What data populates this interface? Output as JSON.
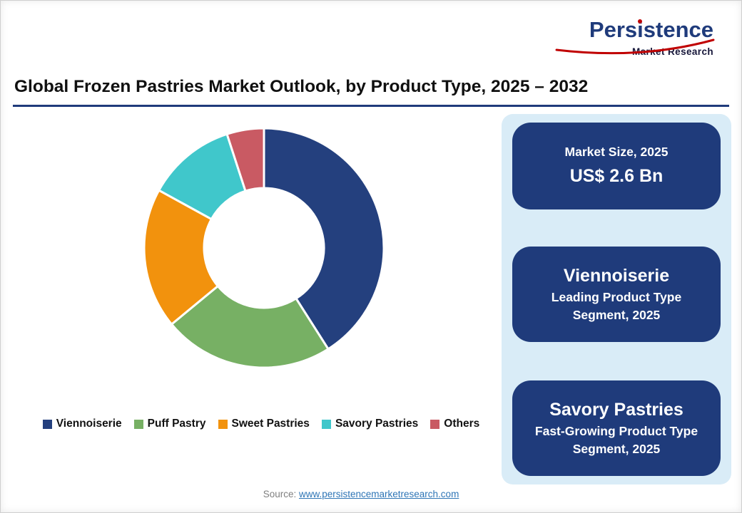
{
  "logo": {
    "brand_pre": "Pers",
    "brand_i": "i",
    "brand_post": "stence",
    "subtitle": "Market Research",
    "brand_color": "#1F3B7B",
    "accent_color": "#C00000"
  },
  "title": "Global Frozen Pastries Market Outlook, by Product Type, 2025 – 2032",
  "chart_data": {
    "type": "pie",
    "subtype": "donut",
    "title": "Global Frozen Pastries Market Outlook, by Product Type, 2025 – 2032",
    "categories": [
      "Viennoiserie",
      "Puff Pastry",
      "Sweet Pastries",
      "Savory Pastries",
      "Others"
    ],
    "values": [
      41,
      23,
      19,
      12,
      5
    ],
    "values_note": "percent share estimated from arc angles; no numeric labels shown in image",
    "colors": [
      "#24407E",
      "#77B064",
      "#F2920D",
      "#40C7CB",
      "#C95A63"
    ],
    "start_angle_deg": 0,
    "direction": "clockwise",
    "inner_radius_ratio": 0.5,
    "slice_border_color": "#FFFFFF",
    "legend_position": "bottom"
  },
  "info_panel": {
    "panel_bg": "#D9ECF7",
    "card_bg": "#1F3B7B",
    "cards": [
      {
        "title": "Market Size, 2025",
        "value": "US$ 2.6 Bn"
      },
      {
        "value": "Viennoiserie",
        "caption": "Leading Product Type Segment, 2025"
      },
      {
        "value": "Savory Pastries",
        "caption": "Fast-Growing Product Type Segment, 2025"
      }
    ]
  },
  "source": {
    "label": "Source:",
    "link_text": "www.persistencemarketresearch.com"
  }
}
